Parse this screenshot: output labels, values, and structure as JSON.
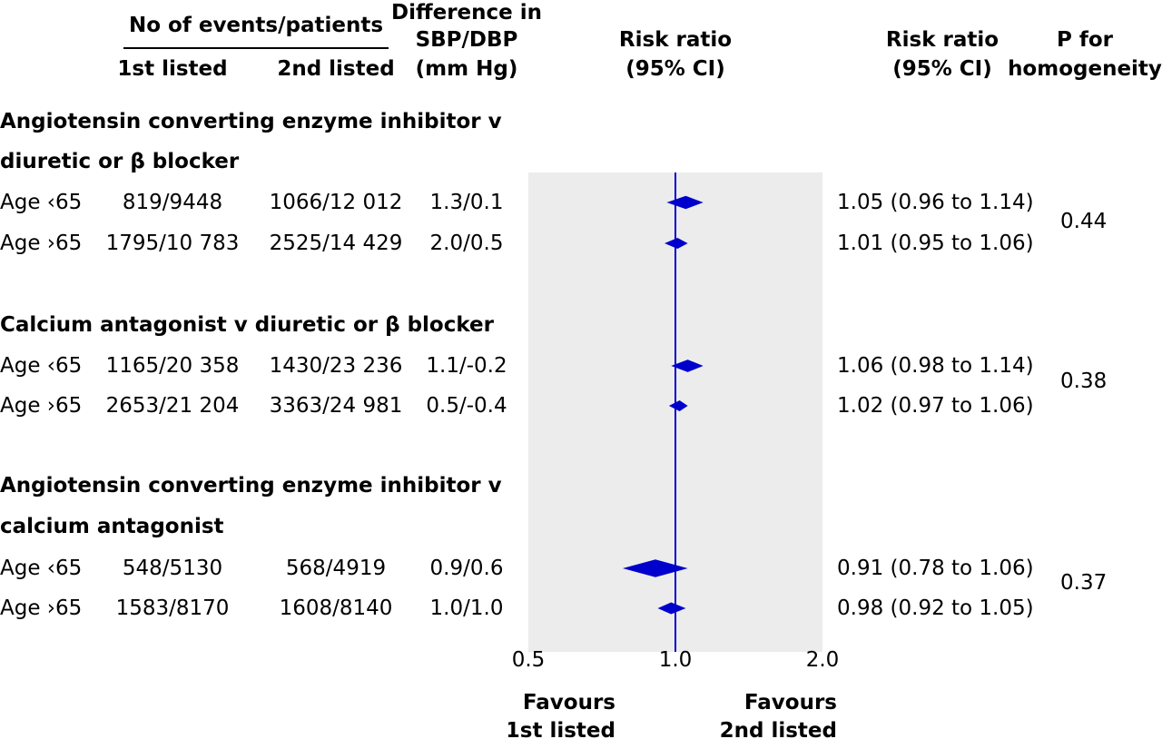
{
  "headers": {
    "events": "No of events/patients",
    "first_listed": "1st listed",
    "second_listed": "2nd listed",
    "diff_lines": [
      "Difference in",
      "SBP/DBP",
      "(mm Hg)"
    ],
    "rr_plot_lines": [
      "Risk ratio",
      "(95% CI)"
    ],
    "rr_text_lines": [
      "Risk ratio",
      "(95% CI)"
    ],
    "p_lines": [
      "P for",
      "homogeneity"
    ]
  },
  "groups": [
    {
      "title_lines": [
        "Angiotensin converting enzyme inhibitor v",
        "diuretic or β blocker"
      ],
      "p_homogeneity": "0.44",
      "rows": [
        {
          "age": "Age ‹65",
          "events_1st": "819/9448",
          "events_2nd": "1066/12 012",
          "bp_diff": "1.3/0.1",
          "rr_text": "1.05 (0.96 to 1.14)"
        },
        {
          "age": "Age ›65",
          "events_1st": "1795/10 783",
          "events_2nd": "2525/14 429",
          "bp_diff": "2.0/0.5",
          "rr_text": "1.01 (0.95 to 1.06)"
        }
      ]
    },
    {
      "title_lines": [
        "Calcium antagonist v diuretic or β blocker"
      ],
      "p_homogeneity": "0.38",
      "rows": [
        {
          "age": "Age ‹65",
          "events_1st": "1165/20 358",
          "events_2nd": "1430/23 236",
          "bp_diff": "1.1/-0.2",
          "rr_text": "1.06 (0.98 to 1.14)"
        },
        {
          "age": "Age ›65",
          "events_1st": "2653/21 204",
          "events_2nd": "3363/24 981",
          "bp_diff": "0.5/-0.4",
          "rr_text": "1.02 (0.97 to 1.06)"
        }
      ]
    },
    {
      "title_lines": [
        "Angiotensin converting enzyme inhibitor v",
        "calcium antagonist"
      ],
      "p_homogeneity": "0.37",
      "rows": [
        {
          "age": "Age ‹65",
          "events_1st": "548/5130",
          "events_2nd": "568/4919",
          "bp_diff": "0.9/0.6",
          "rr_text": "0.91 (0.78 to 1.06)"
        },
        {
          "age": "Age ›65",
          "events_1st": "1583/8170",
          "events_2nd": "1608/8140",
          "bp_diff": "1.0/1.0",
          "rr_text": "0.98 (0.92 to 1.05)"
        }
      ]
    }
  ],
  "chart_data": {
    "type": "forest",
    "scale": "log",
    "xlim": [
      0.5,
      2.0
    ],
    "reference_line": 1.0,
    "ticks": [
      0.5,
      1.0,
      2.0
    ],
    "tick_labels": [
      "0.5",
      "1.0",
      "2.0"
    ],
    "xlabel_left": [
      "Favours",
      "1st listed"
    ],
    "xlabel_right": [
      "Favours",
      "2nd listed"
    ],
    "points": [
      {
        "label": "Age ‹65",
        "rr": 1.05,
        "lo": 0.96,
        "hi": 1.14
      },
      {
        "label": "Age ›65",
        "rr": 1.01,
        "lo": 0.95,
        "hi": 1.06
      },
      {
        "label": "Age ‹65",
        "rr": 1.06,
        "lo": 0.98,
        "hi": 1.14
      },
      {
        "label": "Age ›65",
        "rr": 1.02,
        "lo": 0.97,
        "hi": 1.06
      },
      {
        "label": "Age ‹65",
        "rr": 0.91,
        "lo": 0.78,
        "hi": 1.06
      },
      {
        "label": "Age ›65",
        "rr": 0.98,
        "lo": 0.92,
        "hi": 1.05
      }
    ],
    "colors": {
      "marker": "#0000cc",
      "reference": "#0000cc",
      "background": "#ececec"
    }
  }
}
